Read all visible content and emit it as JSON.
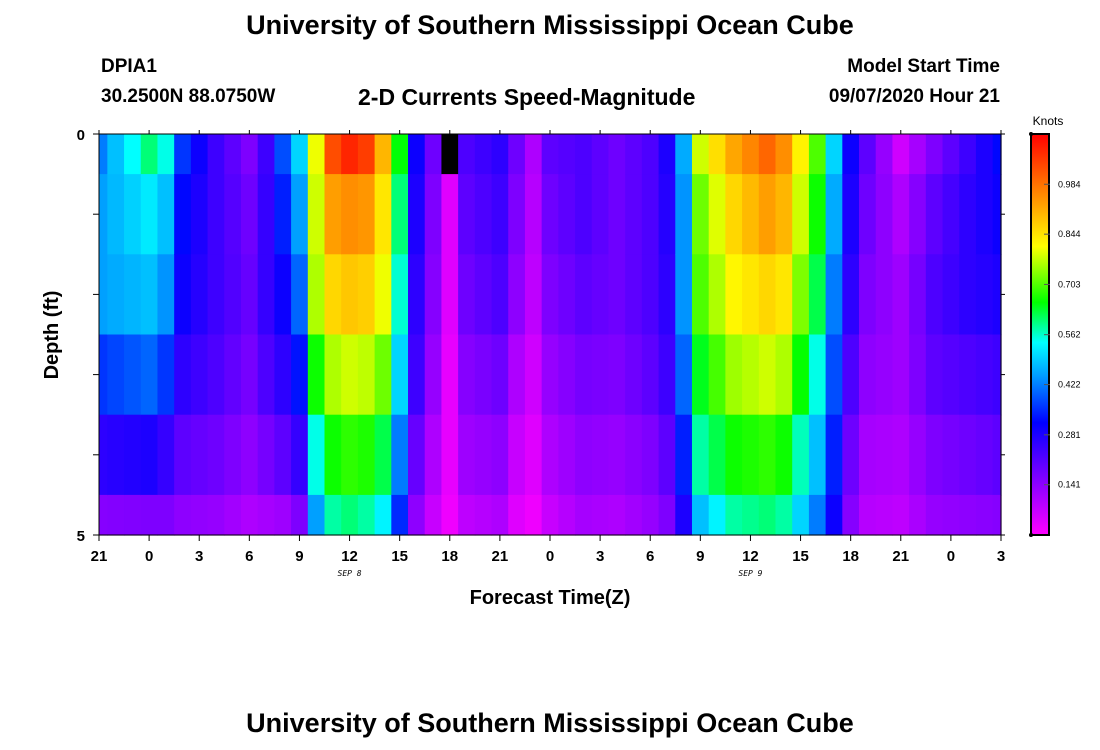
{
  "header": {
    "title": "University of Southern Mississippi Ocean Cube",
    "station_id": "DPIA1",
    "coordinates": "30.2500N 88.0750W",
    "chart_title": "2-D Currents Speed-Magnitude",
    "model_start_label": "Model Start Time",
    "model_start_value": "09/07/2020 Hour 21"
  },
  "footer": {
    "title": "University of Southern Mississippi Ocean Cube"
  },
  "chart_data": {
    "type": "heatmap",
    "title": "2-D Currents Speed-Magnitude",
    "xlabel": "Forecast Time(Z)",
    "ylabel": "Depth (ft)",
    "x_hours": [
      0,
      54
    ],
    "x_ticks": [
      {
        "h": 0,
        "label": "21"
      },
      {
        "h": 3,
        "label": "0"
      },
      {
        "h": 6,
        "label": "3"
      },
      {
        "h": 9,
        "label": "6"
      },
      {
        "h": 12,
        "label": "9"
      },
      {
        "h": 15,
        "label": "12"
      },
      {
        "h": 18,
        "label": "15"
      },
      {
        "h": 21,
        "label": "18"
      },
      {
        "h": 24,
        "label": "21"
      },
      {
        "h": 27,
        "label": "0"
      },
      {
        "h": 30,
        "label": "3"
      },
      {
        "h": 33,
        "label": "6"
      },
      {
        "h": 36,
        "label": "9"
      },
      {
        "h": 39,
        "label": "12"
      },
      {
        "h": 42,
        "label": "15"
      },
      {
        "h": 45,
        "label": "18"
      },
      {
        "h": 48,
        "label": "21"
      },
      {
        "h": 51,
        "label": "0"
      },
      {
        "h": 54,
        "label": "3"
      }
    ],
    "date_labels": [
      {
        "h": 15,
        "label": "SEP 8"
      },
      {
        "h": 39,
        "label": "SEP 9"
      }
    ],
    "y_range": [
      0,
      5
    ],
    "y_tick_labels": [
      {
        "depth": 0,
        "label": "0"
      },
      {
        "depth": 5,
        "label": "5"
      }
    ],
    "y_minor_ticks": [
      1,
      2,
      3,
      4
    ],
    "depth_levels": 5,
    "colorbar": {
      "label": "Knots",
      "min": 0.0,
      "max": 1.125,
      "ticks": [
        0.141,
        0.281,
        0.422,
        0.562,
        0.703,
        0.844,
        0.984
      ]
    },
    "missing_cells": [
      {
        "h": 21,
        "level": 0
      }
    ],
    "keyframes": [
      {
        "h": 0,
        "speeds": [
          0.42,
          0.45,
          0.45,
          0.36,
          0.26,
          0.15
        ]
      },
      {
        "h": 3,
        "speeds": [
          0.6,
          0.52,
          0.48,
          0.4,
          0.28,
          0.16
        ]
      },
      {
        "h": 4,
        "speeds": [
          0.55,
          0.48,
          0.44,
          0.36,
          0.25,
          0.16
        ]
      },
      {
        "h": 5,
        "speeds": [
          0.36,
          0.32,
          0.3,
          0.26,
          0.2,
          0.14
        ]
      },
      {
        "h": 7,
        "speeds": [
          0.24,
          0.24,
          0.24,
          0.22,
          0.18,
          0.13
        ]
      },
      {
        "h": 9,
        "speeds": [
          0.16,
          0.18,
          0.19,
          0.17,
          0.14,
          0.1
        ]
      },
      {
        "h": 10,
        "speeds": [
          0.24,
          0.25,
          0.25,
          0.22,
          0.17,
          0.11
        ]
      },
      {
        "h": 11,
        "speeds": [
          0.38,
          0.34,
          0.3,
          0.26,
          0.2,
          0.12
        ]
      },
      {
        "h": 12,
        "speeds": [
          0.5,
          0.45,
          0.4,
          0.33,
          0.25,
          0.16
        ]
      },
      {
        "h": 13,
        "speeds": [
          0.8,
          0.78,
          0.76,
          0.66,
          0.55,
          0.45
        ]
      },
      {
        "h": 14,
        "speeds": [
          1.03,
          0.93,
          0.86,
          0.76,
          0.66,
          0.58
        ]
      },
      {
        "h": 15,
        "speeds": [
          1.08,
          0.95,
          0.88,
          0.78,
          0.68,
          0.6
        ]
      },
      {
        "h": 16,
        "speeds": [
          1.05,
          0.94,
          0.87,
          0.77,
          0.67,
          0.58
        ]
      },
      {
        "h": 17,
        "speeds": [
          0.9,
          0.84,
          0.8,
          0.72,
          0.62,
          0.53
        ]
      },
      {
        "h": 18,
        "speeds": [
          0.65,
          0.6,
          0.56,
          0.5,
          0.42,
          0.35
        ]
      },
      {
        "h": 19,
        "speeds": [
          0.3,
          0.28,
          0.26,
          0.24,
          0.19,
          0.14
        ]
      },
      {
        "h": 20,
        "speeds": [
          0.18,
          0.16,
          0.15,
          0.13,
          0.1,
          0.07
        ]
      },
      {
        "h": 21,
        "speeds": [
          0.1,
          0.04,
          0.04,
          0.03,
          0.03,
          0.02
        ]
      },
      {
        "h": 22,
        "speeds": [
          0.22,
          0.2,
          0.18,
          0.15,
          0.12,
          0.08
        ]
      },
      {
        "h": 24,
        "speeds": [
          0.26,
          0.24,
          0.22,
          0.18,
          0.14,
          0.1
        ]
      },
      {
        "h": 25,
        "speeds": [
          0.18,
          0.16,
          0.14,
          0.1,
          0.07,
          0.04
        ]
      },
      {
        "h": 26,
        "speeds": [
          0.1,
          0.09,
          0.08,
          0.06,
          0.04,
          0.02
        ]
      },
      {
        "h": 27,
        "speeds": [
          0.2,
          0.18,
          0.16,
          0.13,
          0.1,
          0.07
        ]
      },
      {
        "h": 29,
        "speeds": [
          0.22,
          0.22,
          0.2,
          0.17,
          0.14,
          0.11
        ]
      },
      {
        "h": 31,
        "speeds": [
          0.18,
          0.18,
          0.18,
          0.16,
          0.13,
          0.1
        ]
      },
      {
        "h": 33,
        "speeds": [
          0.22,
          0.22,
          0.22,
          0.2,
          0.16,
          0.13
        ]
      },
      {
        "h": 34,
        "speeds": [
          0.28,
          0.27,
          0.26,
          0.24,
          0.2,
          0.16
        ]
      },
      {
        "h": 35,
        "speeds": [
          0.46,
          0.44,
          0.44,
          0.4,
          0.34,
          0.28
        ]
      },
      {
        "h": 36,
        "speeds": [
          0.78,
          0.72,
          0.7,
          0.64,
          0.58,
          0.48
        ]
      },
      {
        "h": 38,
        "speeds": [
          0.92,
          0.86,
          0.82,
          0.75,
          0.66,
          0.58
        ]
      },
      {
        "h": 40,
        "speeds": [
          1.0,
          0.93,
          0.86,
          0.78,
          0.68,
          0.6
        ]
      },
      {
        "h": 41,
        "speeds": [
          0.95,
          0.9,
          0.84,
          0.76,
          0.66,
          0.58
        ]
      },
      {
        "h": 43,
        "speeds": [
          0.7,
          0.66,
          0.62,
          0.55,
          0.48,
          0.42
        ]
      },
      {
        "h": 44,
        "speeds": [
          0.5,
          0.46,
          0.42,
          0.38,
          0.34,
          0.3
        ]
      },
      {
        "h": 45,
        "speeds": [
          0.3,
          0.28,
          0.26,
          0.22,
          0.18,
          0.15
        ]
      },
      {
        "h": 46,
        "speeds": [
          0.2,
          0.18,
          0.16,
          0.14,
          0.11,
          0.09
        ]
      },
      {
        "h": 48,
        "speeds": [
          0.06,
          0.1,
          0.12,
          0.12,
          0.1,
          0.08
        ]
      },
      {
        "h": 50,
        "speeds": [
          0.16,
          0.2,
          0.22,
          0.2,
          0.16,
          0.13
        ]
      },
      {
        "h": 52,
        "speeds": [
          0.24,
          0.26,
          0.26,
          0.22,
          0.18,
          0.14
        ]
      },
      {
        "h": 54,
        "speeds": [
          0.32,
          0.3,
          0.28,
          0.24,
          0.2,
          0.15
        ]
      }
    ]
  }
}
